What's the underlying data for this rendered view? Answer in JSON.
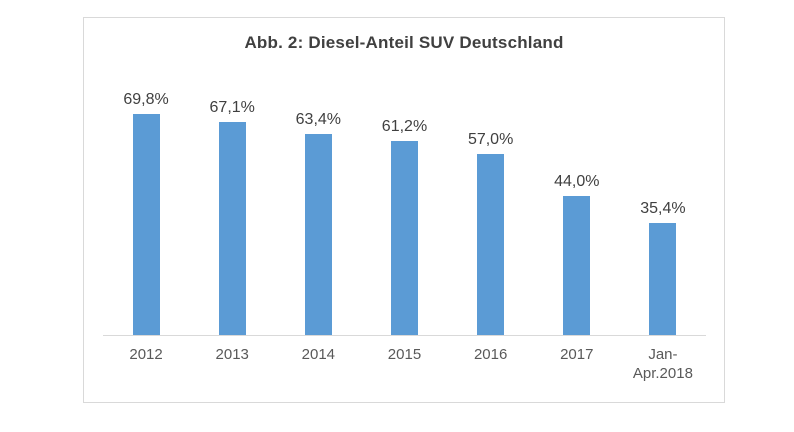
{
  "chart_data": {
    "type": "bar",
    "title": "Abb. 2: Diesel-Anteil SUV Deutschland",
    "categories": [
      "2012",
      "2013",
      "2014",
      "2015",
      "2016",
      "2017",
      "Jan-Apr.2018"
    ],
    "tick_labels": [
      "2012",
      "2013",
      "2014",
      "2015",
      "2016",
      "2017",
      "Jan-\nApr.2018"
    ],
    "values": [
      69.8,
      67.1,
      63.4,
      61.2,
      57.0,
      44.0,
      35.4
    ],
    "value_labels": [
      "69,8%",
      "67,1%",
      "63,4%",
      "61,2%",
      "57,0%",
      "44,0%",
      "35,4%"
    ],
    "xlabel": "",
    "ylabel": "",
    "ylim": [
      0,
      100
    ],
    "grid": false,
    "legend": false,
    "y_axis_visible": false,
    "colors": {
      "bar": "#5B9BD5",
      "axis_line": "#D9D9D9",
      "frame_border": "#D9D9D9",
      "title_text": "#404040",
      "value_label_text": "#404040",
      "tick_label_text": "#595959"
    }
  }
}
